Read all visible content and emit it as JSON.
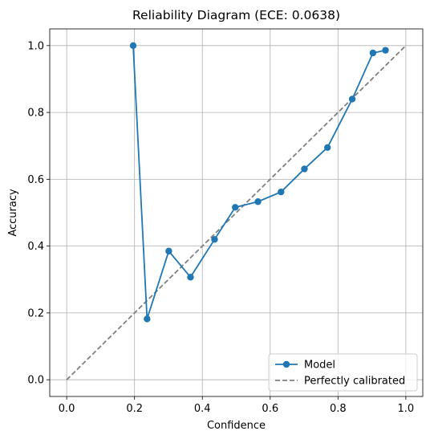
{
  "chart_data": {
    "type": "line",
    "title": "Reliability Diagram (ECE: 0.0638)",
    "xlabel": "Confidence",
    "ylabel": "Accuracy",
    "xlim": [
      -0.05,
      1.05
    ],
    "ylim": [
      -0.05,
      1.05
    ],
    "xticks": [
      0.0,
      0.2,
      0.4,
      0.6,
      0.8,
      1.0
    ],
    "xtick_labels": [
      "0.0",
      "0.2",
      "0.4",
      "0.6",
      "0.8",
      "1.0"
    ],
    "yticks": [
      0.0,
      0.2,
      0.4,
      0.6,
      0.8,
      1.0
    ],
    "ytick_labels": [
      "0.0",
      "0.2",
      "0.4",
      "0.6",
      "0.8",
      "1.0"
    ],
    "grid": true,
    "legend_position": "bottom-right",
    "series": [
      {
        "name": "Model",
        "style": "line-with-markers",
        "color": "#1f77b4",
        "x": [
          0.196,
          0.237,
          0.301,
          0.365,
          0.436,
          0.497,
          0.564,
          0.632,
          0.701,
          0.769,
          0.842,
          0.903,
          0.94
        ],
        "y": [
          1.0,
          0.182,
          0.385,
          0.307,
          0.42,
          0.516,
          0.533,
          0.562,
          0.631,
          0.695,
          0.84,
          0.978,
          0.986
        ]
      },
      {
        "name": "Perfectly calibrated",
        "style": "dashed",
        "color": "#808080",
        "x": [
          0.0,
          1.0
        ],
        "y": [
          0.0,
          1.0
        ]
      }
    ]
  }
}
